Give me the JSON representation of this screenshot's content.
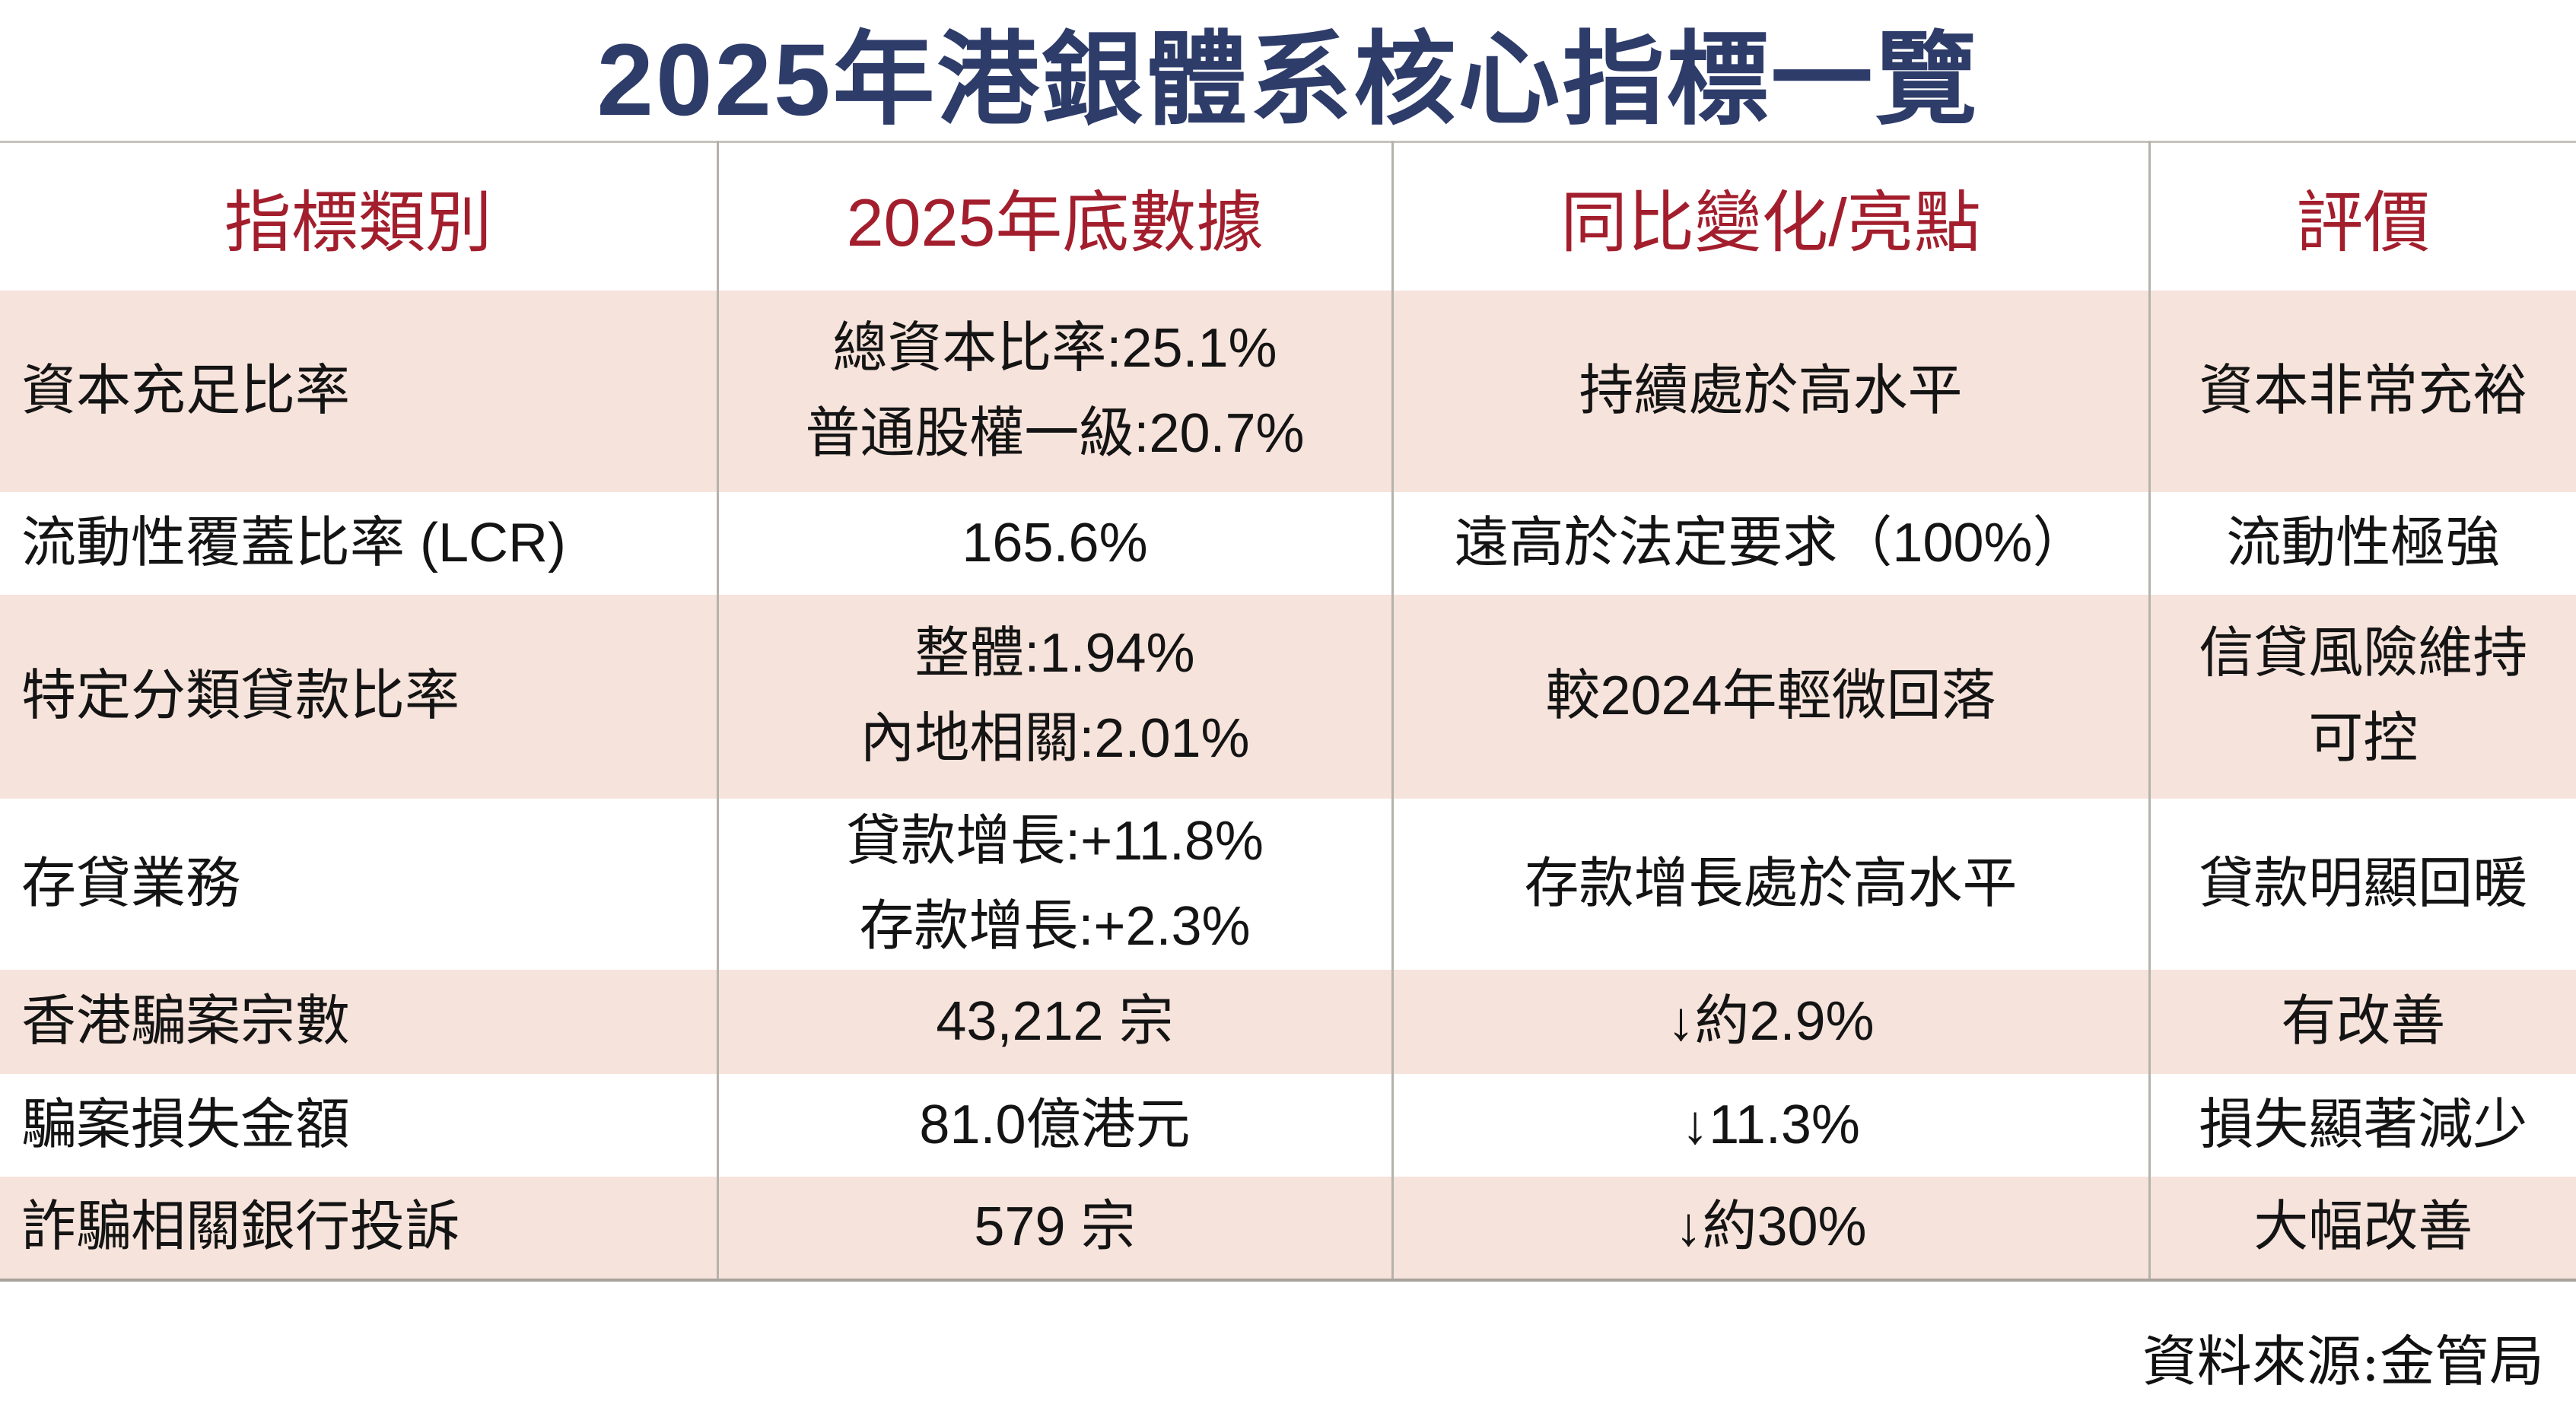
{
  "title": "2025年港銀體系核心指標一覽",
  "source_note": "資料來源:金管局",
  "colors": {
    "title_navy": "#2E3C6A",
    "header_red": "#A31E2D",
    "row_shade_pink": "#F6E3DB",
    "divider_gray": "#B5B2AB"
  },
  "chart_data": {
    "type": "table",
    "title": "2025年港銀體系核心指標一覽",
    "columns": [
      "指標類別",
      "2025年底數據",
      "同比變化/亮點",
      "評價"
    ],
    "rows": [
      {
        "category": "資本充足比率",
        "data_lines": [
          "總資本比率:25.1%",
          "普通股權一級:20.7%"
        ],
        "change": "持續處於高水平",
        "assessment": "資本非常充裕",
        "shaded": true
      },
      {
        "category": "流動性覆蓋比率 (LCR)",
        "data_lines": [
          "165.6%"
        ],
        "change": "遠高於法定要求（100%）",
        "assessment": "流動性極強",
        "shaded": false
      },
      {
        "category": "特定分類貸款比率",
        "data_lines": [
          "整體:1.94%",
          "內地相關:2.01%"
        ],
        "change": "較2024年輕微回落",
        "assessment": "信貸風險維持可控",
        "shaded": true
      },
      {
        "category": "存貸業務",
        "data_lines": [
          "貸款增長:+11.8%",
          "存款增長:+2.3%"
        ],
        "change": "存款增長處於高水平",
        "assessment": "貸款明顯回暖",
        "shaded": false
      },
      {
        "category": "香港騙案宗數",
        "data_lines": [
          "43,212 宗"
        ],
        "change": "↓約2.9%",
        "assessment": "有改善",
        "shaded": true
      },
      {
        "category": "騙案損失金額",
        "data_lines": [
          "81.0億港元"
        ],
        "change": "↓11.3%",
        "assessment": "損失顯著減少",
        "shaded": false
      },
      {
        "category": "詐騙相關銀行投訴",
        "data_lines": [
          "579 宗"
        ],
        "change": "↓約30%",
        "assessment": "大幅改善",
        "shaded": true
      }
    ],
    "source": "資料來源:金管局"
  }
}
